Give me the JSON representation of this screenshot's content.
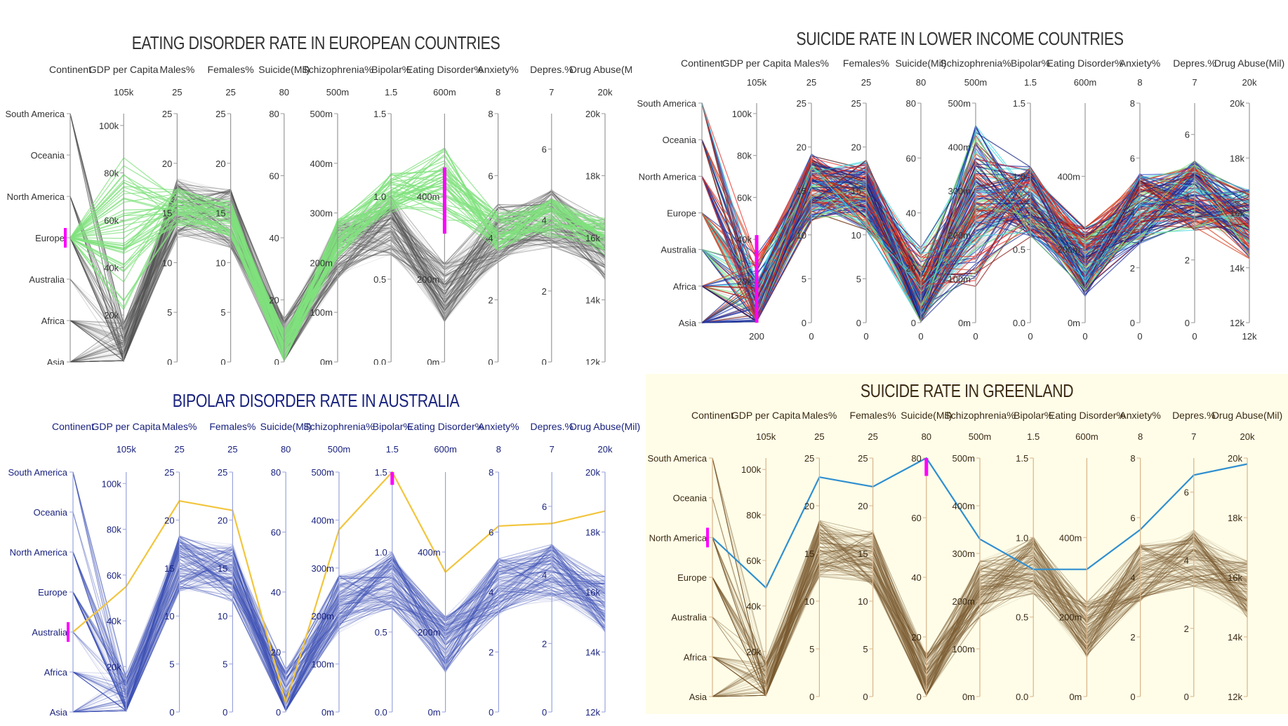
{
  "axes": [
    {
      "label": "Continent",
      "type": "categorical",
      "categories": [
        "South America",
        "Oceania",
        "North America",
        "Europe",
        "Australia",
        "Africa",
        "Asia"
      ]
    },
    {
      "label": "GDP per Capita",
      "type": "numeric",
      "range_bottom": 200,
      "range_top": 105000,
      "ticks": [
        "20k",
        "40k",
        "60k",
        "80k",
        "100k"
      ],
      "min_label": "200",
      "max_label": "105k"
    },
    {
      "label": "Males%",
      "type": "numeric",
      "range_bottom": 0,
      "range_top": 25,
      "ticks": [
        "0",
        "5",
        "10",
        "15",
        "20",
        "25"
      ],
      "min_label": "0",
      "max_label": "25"
    },
    {
      "label": "Females%",
      "type": "numeric",
      "range_bottom": 0,
      "range_top": 25,
      "ticks": [
        "0",
        "5",
        "10",
        "15",
        "20",
        "25"
      ],
      "min_label": "0",
      "max_label": "25"
    },
    {
      "label": "Suicide(Mil)",
      "type": "numeric",
      "range_bottom": 0,
      "range_top": 80,
      "ticks": [
        "0",
        "20",
        "40",
        "60",
        "80"
      ],
      "min_label": "0",
      "max_label": "80"
    },
    {
      "label": "Schizophrenia%",
      "type": "numeric",
      "range_bottom": 0,
      "range_top": 500,
      "ticks": [
        "0m",
        "100m",
        "200m",
        "300m",
        "400m",
        "500m"
      ],
      "min_label": "0",
      "max_label": "500m"
    },
    {
      "label": "Bipolar%",
      "type": "numeric",
      "range_bottom": 0,
      "range_top": 1.5,
      "ticks": [
        "0.0",
        "0.5",
        "1.0",
        "1.5"
      ],
      "min_label": "0",
      "max_label": "1.5"
    },
    {
      "label": "Eating Disorder%",
      "type": "numeric",
      "range_bottom": 0,
      "range_top": 600,
      "ticks": [
        "0m",
        "200m",
        "400m"
      ],
      "min_label": "0",
      "max_label": "600m"
    },
    {
      "label": "Anxiety%",
      "type": "numeric",
      "range_bottom": 0,
      "range_top": 8,
      "ticks": [
        "0",
        "2",
        "4",
        "6",
        "8"
      ],
      "min_label": "0",
      "max_label": "8"
    },
    {
      "label": "Depres.%",
      "type": "numeric",
      "range_bottom": 0,
      "range_top": 7,
      "ticks": [
        "0",
        "2",
        "4",
        "6"
      ],
      "min_label": "0",
      "max_label": "7"
    },
    {
      "label": "Drug Abuse(Mil)",
      "type": "numeric",
      "range_bottom": 12000,
      "range_top": 20000,
      "ticks": [
        "12k",
        "14k",
        "16k",
        "18k",
        "20k"
      ],
      "min_label": "12k",
      "max_label": "20k"
    }
  ],
  "chart_data": [
    {
      "type": "parallel_coordinates",
      "title": "EATING DISORDER RATE IN EUROPEAN COUNTRIES",
      "background": "#ffffff",
      "axis_color": "#999999",
      "text_color": "#333333",
      "base_color": "#555555",
      "highlight_color": "#80e27e",
      "brush_color": "#ff00ff",
      "filter": {
        "axis": "Eating Disorder%",
        "range": [
          310,
          470
        ]
      },
      "continent_filter": "Europe",
      "show_bottom_labels": false,
      "profiles": [
        {
          "color": "#80e27e",
          "values": [
            3,
            40000,
            16,
            17,
            8,
            230,
            1.0,
            420,
            5.5,
            4.2,
            16800
          ]
        },
        {
          "color": "#555555",
          "values": [
            6,
            3000,
            14,
            13,
            5,
            250,
            0.8,
            150,
            3.6,
            3.6,
            15000
          ]
        }
      ]
    },
    {
      "type": "parallel_coordinates",
      "title": "SUICIDE RATE IN LOWER INCOME COUNTRIES",
      "background": "#ffffff",
      "axis_color": "#999999",
      "text_color": "#333333",
      "base_color": "#555555",
      "highlight_color": "#1f2fa8",
      "brush_color": "#ff00ff",
      "filter": {
        "axis": "GDP per Capita",
        "range": [
          200,
          42000
        ]
      },
      "series_colors": [
        "#1a2a9e",
        "#2c46c2",
        "#e8302a",
        "#3fd6e0",
        "#80e27e",
        "#8b1a1a",
        "#d43a1a",
        "#102080"
      ],
      "show_bottom_labels": true,
      "profiles": [
        {
          "color": "#1a2a9e",
          "values": [
            6,
            2000,
            15,
            14,
            10,
            240,
            0.9,
            180,
            5.0,
            3.6,
            15500
          ]
        },
        {
          "color": "#e8302a",
          "values": [
            6,
            1500,
            14,
            14,
            8,
            250,
            0.7,
            150,
            4.8,
            3.8,
            16000
          ]
        }
      ]
    },
    {
      "type": "parallel_coordinates",
      "title": "BIPOLAR DISORDER RATE IN AUSTRALIA",
      "background": "#ffffff",
      "axis_color": "#99a3dd",
      "text_color": "#1a237e",
      "base_color": "#3f51b5",
      "highlight_color": "#f2c53d",
      "brush_color": "#ff00ff",
      "filter": {
        "axis": "Bipolar%",
        "range": [
          1.42,
          1.55
        ]
      },
      "continent_filter": "Australia",
      "show_bottom_labels": false,
      "profiles": [
        {
          "color": "#f2c53d",
          "values": [
            4,
            55000,
            22,
            21,
            3,
            380,
            1.5,
            350,
            6.2,
            5.5,
            18700
          ]
        },
        {
          "color": "#3f51b5",
          "values": [
            5,
            2000,
            15,
            14,
            8,
            230,
            0.8,
            180,
            4.0,
            4.0,
            15600
          ]
        }
      ]
    },
    {
      "type": "parallel_coordinates",
      "title": "SUICIDE RATE IN GREENLAND",
      "background": "#fffde8",
      "axis_color": "#d9b48a",
      "text_color": "#3b2a14",
      "base_color": "#7a5a30",
      "highlight_color": "#2f8fd0",
      "brush_color": "#ff00ff",
      "filter": {
        "axis": "Suicide(Mil)",
        "range": [
          74,
          82
        ]
      },
      "continent_filter": "North America",
      "show_bottom_labels": false,
      "profiles": [
        {
          "color": "#2f8fd0",
          "values": [
            2,
            48000,
            23,
            22,
            80,
            330,
            0.8,
            320,
            5.6,
            6.5,
            19800
          ]
        },
        {
          "color": "#7a5a30",
          "values": [
            4,
            3000,
            15,
            14,
            7,
            230,
            0.8,
            160,
            4.0,
            4.0,
            15600
          ]
        }
      ]
    }
  ]
}
